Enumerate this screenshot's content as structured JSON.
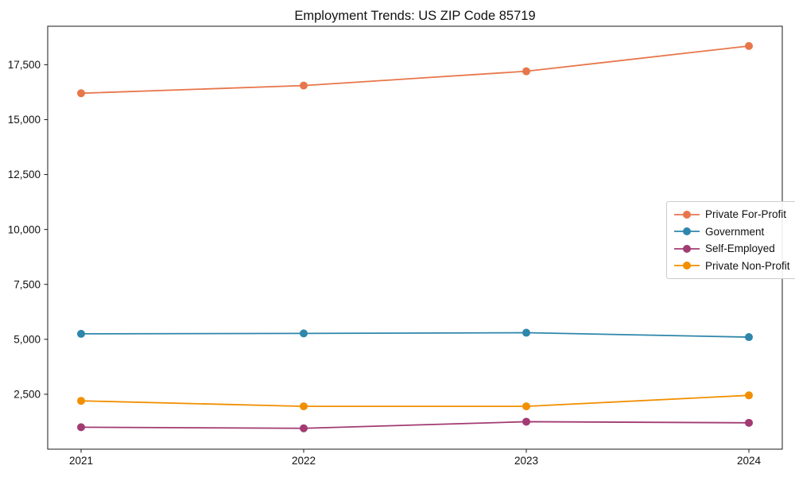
{
  "chart_data": {
    "type": "line",
    "title": "Employment Trends: US ZIP Code 85719",
    "x": [
      2021,
      2022,
      2023,
      2024
    ],
    "xtick_labels": [
      "2021",
      "2022",
      "2023",
      "2024"
    ],
    "yticks": [
      2500,
      5000,
      7500,
      10000,
      12500,
      15000,
      17500
    ],
    "ytick_labels": [
      "2,500",
      "5,000",
      "7,500",
      "10,000",
      "12,500",
      "15,000",
      "17,500"
    ],
    "xlim": [
      2020.85,
      2024.15
    ],
    "ylim": [
      0,
      19250
    ],
    "grid": false,
    "legend_position": "center right",
    "series": [
      {
        "name": "Private For-Profit",
        "color": "#E8764B",
        "values": [
          16200,
          16550,
          17200,
          18350
        ]
      },
      {
        "name": "Government",
        "color": "#2E86AB",
        "values": [
          5250,
          5270,
          5300,
          5100
        ]
      },
      {
        "name": "Self-Employed",
        "color": "#A23B72",
        "values": [
          1000,
          950,
          1250,
          1200
        ]
      },
      {
        "name": "Private Non-Profit",
        "color": "#F18F01",
        "values": [
          2200,
          1950,
          1950,
          2450
        ]
      }
    ],
    "axis_color": "#1a1a1a",
    "background_color": "#ffffff",
    "marker": "circle",
    "marker_radius": 5,
    "line_width": 1.8
  }
}
